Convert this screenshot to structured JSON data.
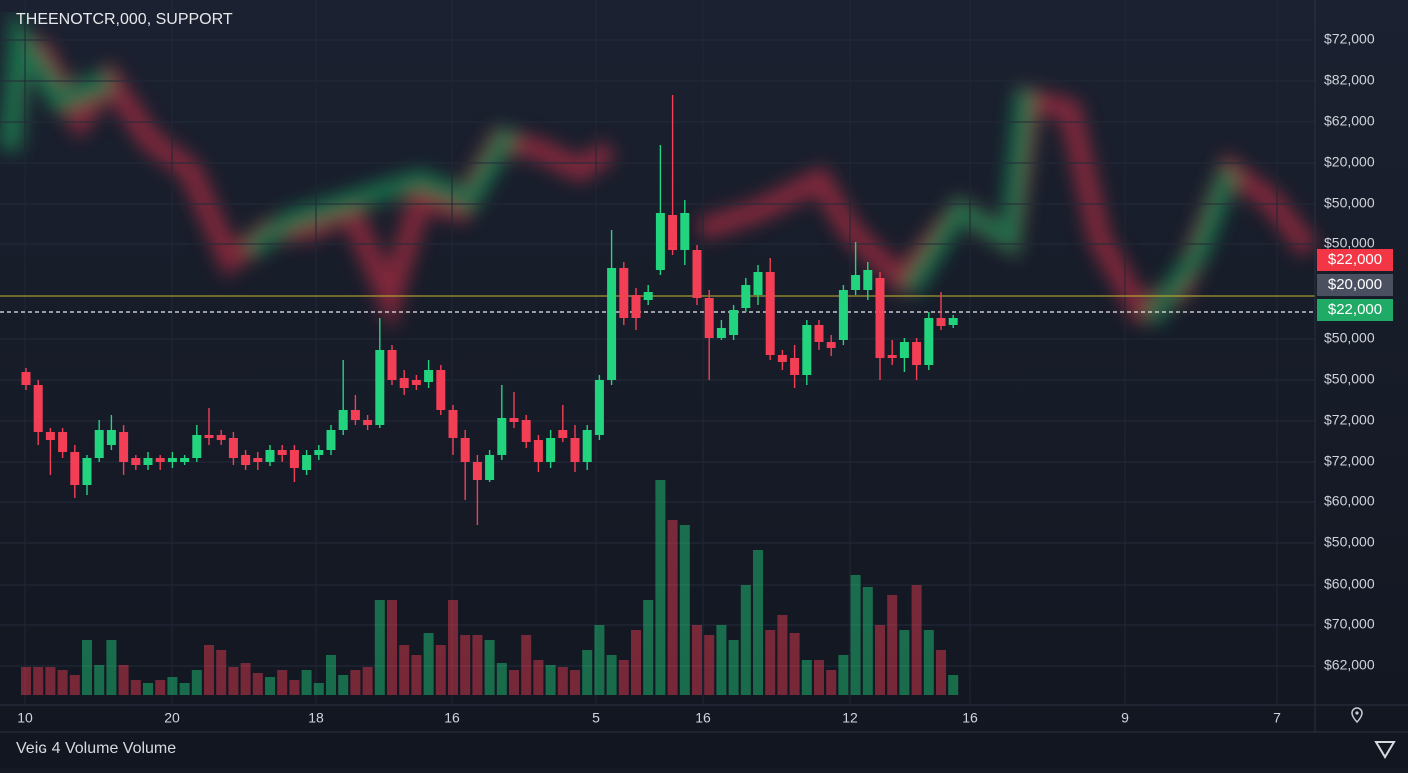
{
  "chart_data": {
    "type": "candlestick",
    "title": "THEENOTCR,000, SUPPORT",
    "ylim": [
      0,
      700
    ],
    "up_color": "#22d47e",
    "down_color": "#f23f55",
    "candles": {
      "open": [
        328,
        315,
        268,
        268,
        248,
        215,
        242,
        255,
        268,
        242,
        235,
        242,
        238,
        238,
        242,
        265,
        265,
        262,
        245,
        242,
        238,
        250,
        250,
        230,
        245,
        250,
        270,
        290,
        280,
        275,
        350,
        322,
        320,
        318,
        330,
        290,
        262,
        238,
        220,
        245,
        282,
        280,
        260,
        238,
        270,
        262,
        238,
        265,
        320,
        432,
        405,
        400,
        430,
        485,
        450,
        450,
        402,
        362,
        365,
        392,
        405,
        428,
        345,
        342,
        325,
        375,
        358,
        360,
        410,
        410,
        422,
        345,
        342,
        358,
        335,
        382,
        375
      ],
      "high": [
        332,
        320,
        272,
        272,
        255,
        245,
        280,
        285,
        275,
        245,
        248,
        245,
        248,
        245,
        275,
        292,
        270,
        268,
        250,
        248,
        255,
        255,
        255,
        250,
        255,
        275,
        340,
        305,
        285,
        382,
        355,
        330,
        325,
        340,
        335,
        295,
        270,
        245,
        250,
        315,
        308,
        285,
        265,
        270,
        295,
        275,
        275,
        325,
        470,
        438,
        412,
        415,
        555,
        605,
        500,
        455,
        410,
        380,
        395,
        422,
        435,
        442,
        350,
        355,
        380,
        380,
        365,
        415,
        458,
        438,
        428,
        360,
        362,
        362,
        388,
        408,
        385
      ],
      "low": [
        310,
        255,
        225,
        242,
        202,
        205,
        238,
        250,
        225,
        230,
        230,
        230,
        232,
        235,
        238,
        255,
        255,
        235,
        230,
        230,
        234,
        238,
        218,
        225,
        240,
        245,
        265,
        275,
        270,
        272,
        315,
        305,
        310,
        312,
        285,
        245,
        200,
        175,
        218,
        240,
        272,
        252,
        228,
        232,
        258,
        228,
        230,
        260,
        315,
        375,
        370,
        395,
        425,
        445,
        435,
        395,
        320,
        360,
        360,
        388,
        395,
        340,
        330,
        312,
        315,
        350,
        344,
        355,
        405,
        400,
        320,
        335,
        328,
        320,
        330,
        370,
        372
      ],
      "close": [
        315,
        268,
        260,
        248,
        215,
        242,
        270,
        270,
        238,
        235,
        242,
        238,
        242,
        242,
        265,
        262,
        260,
        242,
        235,
        238,
        250,
        245,
        232,
        245,
        250,
        270,
        290,
        280,
        275,
        350,
        320,
        312,
        315,
        330,
        290,
        262,
        238,
        220,
        245,
        282,
        278,
        258,
        238,
        262,
        262,
        238,
        270,
        320,
        432,
        382,
        382,
        408,
        487,
        450,
        487,
        402,
        362,
        372,
        390,
        415,
        428,
        345,
        338,
        325,
        375,
        358,
        352,
        410,
        425,
        430,
        342,
        342,
        358,
        335,
        382,
        374,
        382
      ]
    },
    "volume_ylim": [
      0,
      300
    ],
    "volume": {
      "values": [
        28,
        28,
        28,
        25,
        20,
        55,
        30,
        55,
        30,
        15,
        12,
        15,
        18,
        12,
        25,
        50,
        45,
        28,
        32,
        22,
        18,
        25,
        15,
        25,
        12,
        40,
        20,
        25,
        28,
        95,
        95,
        50,
        40,
        62,
        50,
        95,
        60,
        60,
        55,
        32,
        25,
        60,
        35,
        30,
        28,
        25,
        45,
        70,
        40,
        35,
        65,
        95,
        215,
        175,
        170,
        70,
        60,
        70,
        55,
        110,
        145,
        65,
        80,
        62,
        35,
        35,
        25,
        40,
        120,
        108,
        70,
        100,
        65,
        110,
        65,
        45,
        20
      ]
    },
    "price_axis_labels": [
      "$72,000",
      "$82,000",
      "$62,000",
      "$20,000",
      "$50,000",
      "$50,000",
      "$50,000",
      "$50,000",
      "$72,000",
      "$72,000",
      "$60,000",
      "$50,000",
      "$60,000",
      "$70,000",
      "$62,000"
    ],
    "price_tags": [
      {
        "label": "$22,000",
        "color": "#f23645"
      },
      {
        "label": "$20,000",
        "color": "#4a5060"
      },
      {
        "label": "$22,000",
        "color": "#1faa66"
      }
    ],
    "x_labels": [
      "10",
      "20",
      "18",
      "16",
      "5",
      "16",
      "12",
      "16",
      "9",
      "7"
    ],
    "footer": "Veiɢ 4 Volume Volume"
  }
}
